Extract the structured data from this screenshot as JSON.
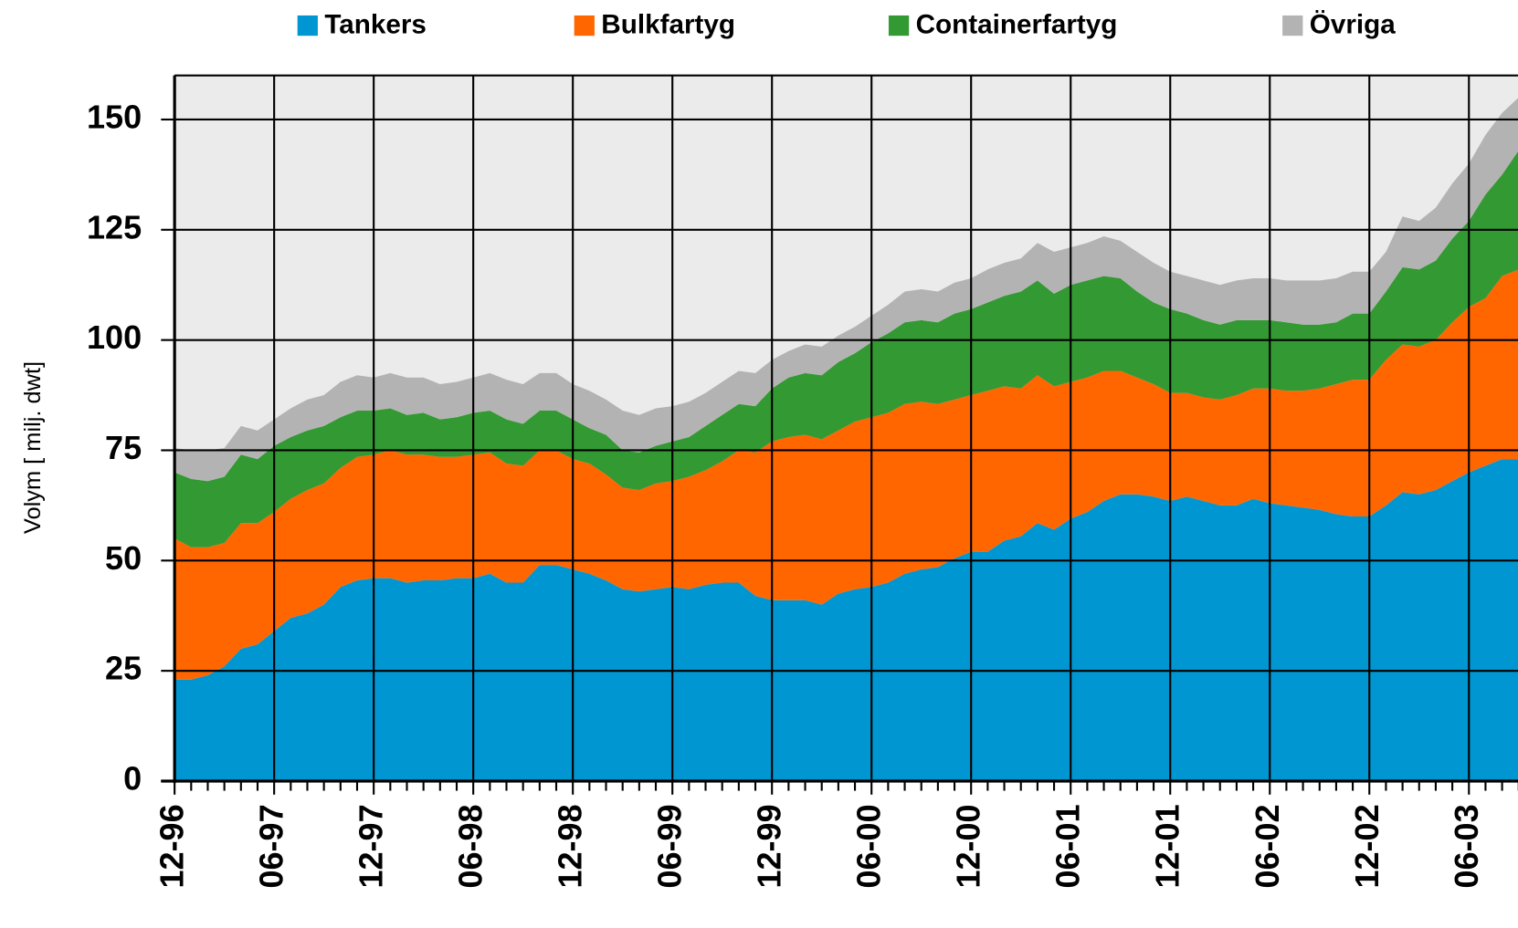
{
  "chart_data": {
    "type": "stacked_area",
    "y_label": "Volym [ milj. dwt]",
    "categories": [
      "12-96",
      null,
      null,
      null,
      null,
      null,
      "06-97",
      null,
      null,
      null,
      null,
      null,
      "12-97",
      null,
      null,
      null,
      null,
      null,
      "06-98",
      null,
      null,
      null,
      null,
      null,
      "12-98",
      null,
      null,
      null,
      null,
      null,
      "06-99",
      null,
      null,
      null,
      null,
      null,
      "12-99",
      null,
      null,
      null,
      null,
      null,
      "06-00",
      null,
      null,
      null,
      null,
      null,
      "12-00",
      null,
      null,
      null,
      null,
      null,
      "06-01",
      null,
      null,
      null,
      null,
      null,
      "12-01",
      null,
      null,
      null,
      null,
      null,
      "06-02",
      null,
      null,
      null,
      null,
      null,
      "12-02",
      null,
      null,
      null,
      null,
      null,
      "06-03",
      null,
      null,
      null
    ],
    "series": [
      {
        "name": "Tankers",
        "color": "#0096d1",
        "values": [
          23,
          23,
          24,
          26,
          30,
          31,
          34,
          37,
          38,
          40,
          44,
          45.5,
          46,
          46,
          45,
          45.5,
          45.5,
          46,
          46,
          47,
          45,
          45,
          49,
          49,
          48,
          47,
          45.5,
          43.5,
          43,
          43.5,
          44,
          43.5,
          44.5,
          45,
          45,
          42,
          41,
          41,
          41,
          40,
          42.5,
          43.5,
          44,
          45,
          47,
          48,
          48.5,
          50.5,
          52,
          52,
          54.5,
          55.5,
          58.5,
          57,
          59.5,
          61,
          63.5,
          65,
          65,
          64.5,
          63.5,
          64.5,
          63.5,
          62.5,
          62.5,
          64,
          63,
          62.5,
          62,
          61.5,
          60.5,
          60,
          60,
          62.5,
          65.5,
          65,
          66,
          68,
          70,
          71.5,
          73,
          73
        ]
      },
      {
        "name": "Bulkfartyg",
        "color": "#ff6600",
        "values": [
          32,
          30,
          29,
          28,
          28.5,
          27.5,
          27,
          27,
          28,
          27.5,
          27,
          28,
          28,
          29,
          29,
          28.5,
          28,
          27.5,
          28,
          27.5,
          27,
          26.5,
          26,
          26,
          25,
          25,
          24,
          23,
          23,
          24,
          24,
          25.5,
          26,
          27.5,
          30,
          32.5,
          36,
          37,
          37.5,
          37.5,
          37,
          38,
          38.5,
          38.5,
          38.5,
          38,
          37,
          36,
          35.5,
          36.5,
          35,
          33.5,
          33.5,
          32.5,
          31,
          30.5,
          29.5,
          28,
          26.5,
          25.5,
          24.5,
          23.5,
          23.5,
          24,
          25,
          25,
          26,
          26,
          26.5,
          27.5,
          29.5,
          31,
          31,
          33,
          33.5,
          33.5,
          34,
          36,
          37.5,
          38,
          41.5,
          43
        ]
      },
      {
        "name": "Containerfartyg",
        "color": "#339933",
        "values": [
          15,
          15.5,
          15,
          15,
          15.5,
          14.5,
          15,
          14,
          13.5,
          13,
          11.5,
          10.5,
          10,
          9.5,
          9,
          9.5,
          8.5,
          9,
          9.5,
          9.5,
          10,
          9.5,
          9,
          9,
          9,
          8,
          9,
          8.5,
          8.5,
          8.5,
          9,
          9,
          10,
          10.5,
          10.5,
          10.5,
          12,
          13.5,
          14,
          14.5,
          15.5,
          15.5,
          17,
          18,
          18.5,
          18.5,
          18.5,
          19.5,
          19.5,
          20,
          20.5,
          22,
          21.5,
          21,
          22,
          22,
          21.5,
          21,
          19.5,
          18.5,
          19,
          18,
          17.5,
          17,
          17,
          15.5,
          15.5,
          15.5,
          15,
          14.5,
          14,
          15,
          15,
          15.5,
          17.5,
          17.5,
          18,
          19,
          19.5,
          23.5,
          23,
          27
        ]
      },
      {
        "name": "Övriga",
        "color": "#b3b3b3",
        "values": [
          5.5,
          6.5,
          7,
          6.5,
          6.5,
          6.5,
          6,
          6.5,
          7,
          7,
          8,
          8,
          7.5,
          8,
          8.5,
          8,
          8,
          8,
          8,
          8.5,
          9,
          9,
          8.5,
          8.5,
          8,
          8.5,
          8,
          9,
          8.5,
          8.5,
          8,
          8,
          7.5,
          7.5,
          7.5,
          7.5,
          6.5,
          6,
          6.5,
          6.5,
          6,
          6,
          6,
          6.5,
          7,
          7,
          7,
          7,
          7,
          7.5,
          7.5,
          7.5,
          8.5,
          9.5,
          8.5,
          8.5,
          9,
          8.5,
          9,
          9,
          8.5,
          8.5,
          9,
          9,
          9,
          9.5,
          9.5,
          9.5,
          10,
          10,
          10,
          9.5,
          9.5,
          9,
          11.5,
          11,
          12,
          12.5,
          13,
          13.5,
          14,
          12
        ]
      }
    ],
    "ylim": [
      0,
      160
    ],
    "yticks": [
      0,
      25,
      50,
      75,
      100,
      125,
      150
    ],
    "grid": true,
    "legend": "top"
  }
}
